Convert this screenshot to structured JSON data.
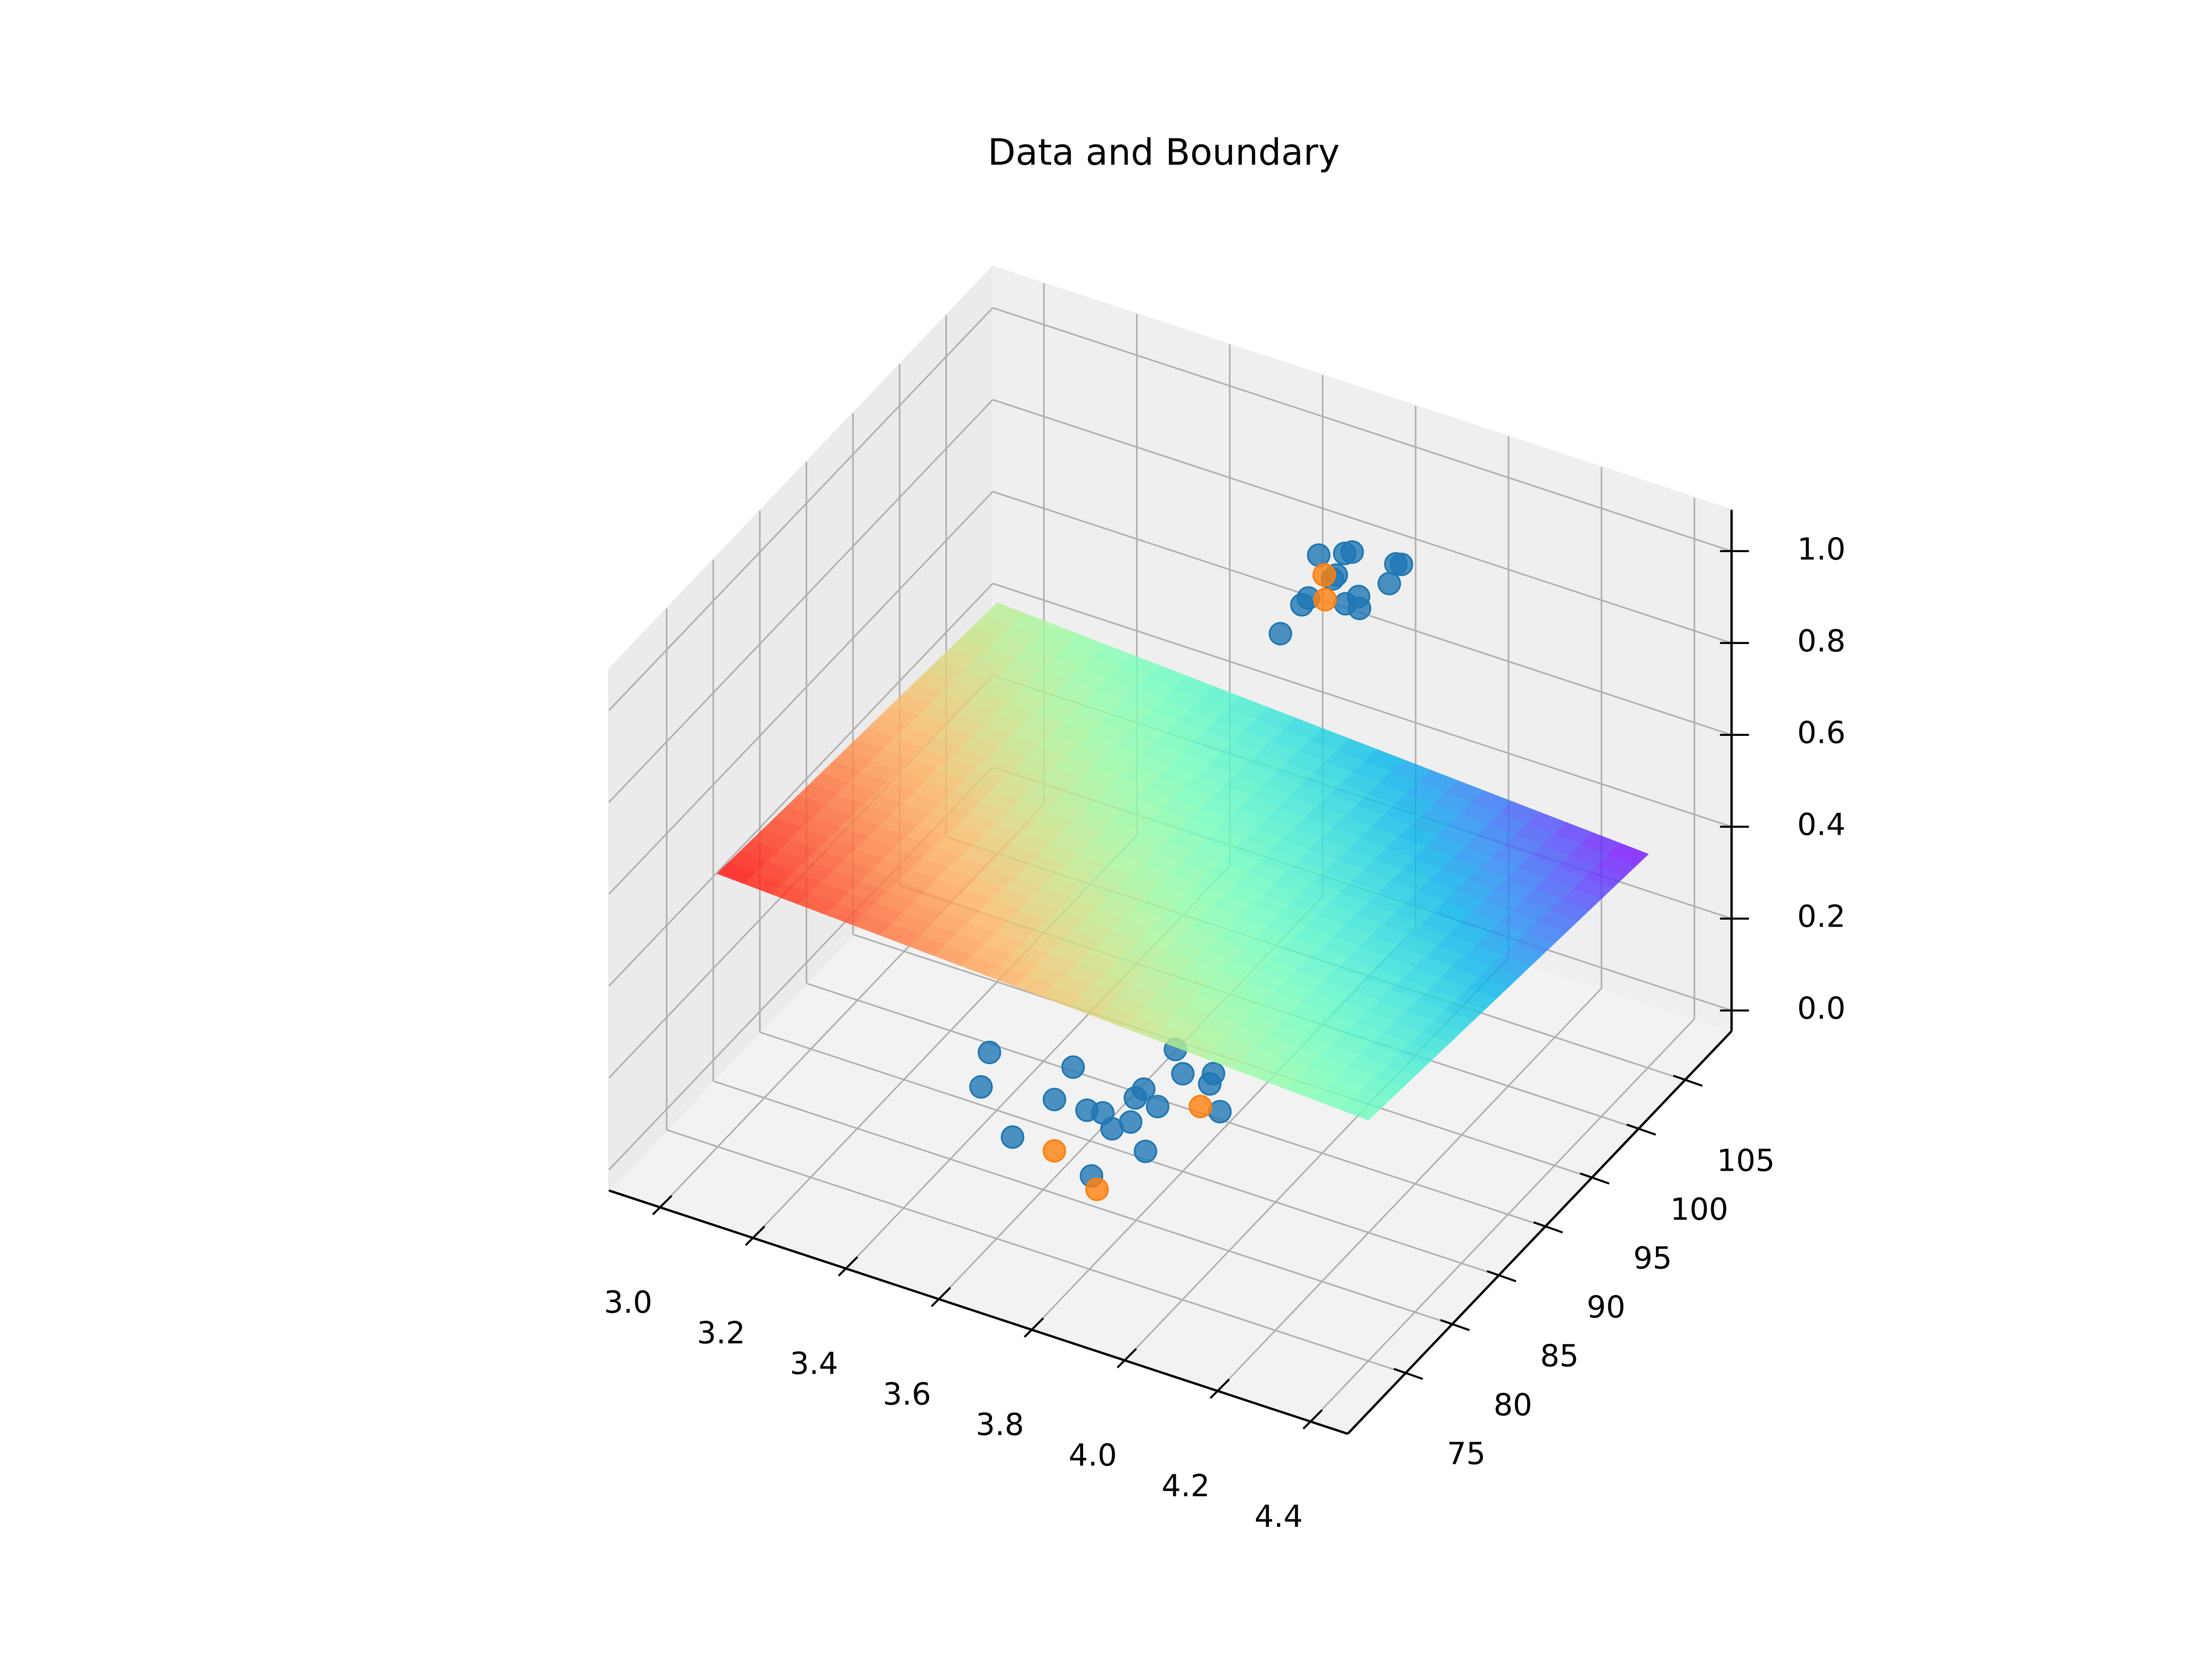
{
  "chart_data": {
    "type": "scatter3d",
    "title": "Data and Boundary",
    "xlim": [
      2.89,
      4.48
    ],
    "ylim": [
      68.8,
      110
    ],
    "zlim": [
      -0.045,
      1.09
    ],
    "xticks": [
      {
        "value": 3,
        "label": "3.0"
      },
      3.2,
      3.4,
      3.6,
      3.8,
      {
        "value": 4,
        "label": "4.0"
      },
      4.2,
      4.4
    ],
    "yticks": [
      75,
      80,
      85,
      90,
      95,
      100,
      105
    ],
    "zticks": [
      {
        "value": 0,
        "label": "0.0"
      },
      0.2,
      0.4,
      0.6,
      0.8,
      {
        "value": 1,
        "label": "1.0"
      }
    ],
    "grid": true,
    "surface": {
      "x": [
        3.0,
        4.4
      ],
      "y": [
        75,
        105
      ],
      "z": [
        [
          0.55,
          0.48
        ],
        [
          0.5,
          0.42
        ]
      ],
      "colormap": "rainbow",
      "alpha": 0.8
    },
    "series": [
      {
        "color": "#1f77b4",
        "x": [
          3.33,
          3.37,
          3.49,
          3.5,
          3.51,
          3.58,
          3.61,
          3.65,
          3.67,
          3.64,
          3.64,
          3.69,
          3.63,
          3.68,
          3.74,
          3.73,
          3.8,
          3.69,
          3.74,
          3.87,
          3.86,
          3.86,
          3.81,
          3.87,
          3.85,
          3.86,
          3.93,
          3.94,
          3.96,
          3.97,
          3.95,
          3.96,
          3.87
        ],
        "y": [
          87.7,
          84.8,
          88.7,
          81.7,
          85.7,
          85.7,
          85.9,
          84.9,
          85.9,
          88.8,
          87.9,
          87.8,
          92.7,
          91.0,
          90.9,
          91.8,
          89.0,
          80.7,
          84.0,
          92.0,
          94.8,
          95.5,
          99.1,
          97.6,
          99.9,
          100.2,
          96.0,
          96.9,
          96.0,
          98.7,
          100.4,
          100.5,
          98.0
        ],
        "z": [
          0,
          0,
          0,
          0,
          0,
          0,
          0,
          0,
          0,
          0,
          0,
          0,
          0,
          0,
          0,
          0,
          0,
          0,
          0,
          1,
          1,
          1,
          1,
          1,
          1,
          1,
          1,
          1,
          1,
          1,
          1,
          1,
          1
        ]
      },
      {
        "color": "#ff7f0e",
        "x": [
          3.76,
          3.59,
          3.72,
          3.89,
          3.85
        ],
        "y": [
          88.9,
          81.7,
          79.8,
          95.8,
          97.7
        ],
        "z": [
          0,
          0,
          0,
          1,
          1
        ]
      }
    ]
  }
}
